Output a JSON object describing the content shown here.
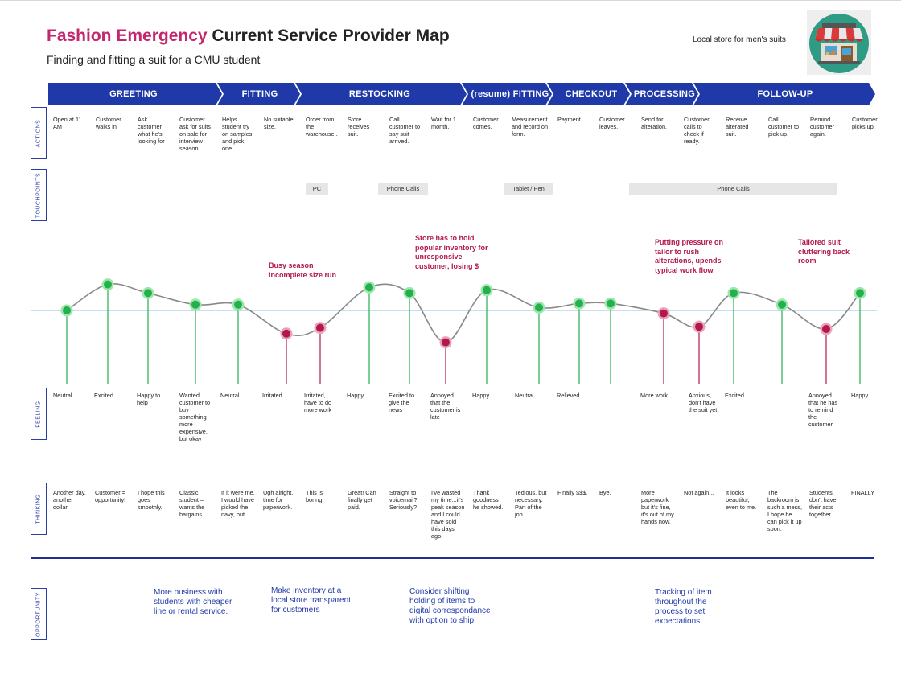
{
  "header": {
    "brand": "Fashion Emergency",
    "title_rest": " Current Service Provider Map",
    "subtitle": "Finding and fitting a suit for a CMU student",
    "store_label": "Local store for men's suits",
    "store_icon": "storefront-icon"
  },
  "phases": [
    "GREETING",
    "FITTING",
    "RESTOCKING",
    "(resume) FITTING",
    "CHECKOUT",
    "PROCESSING",
    "FOLLOW-UP"
  ],
  "row_labels": {
    "actions": "ACTIONS",
    "touchpoints": "TOUCHPOINTS",
    "feeling": "FEELING",
    "thinking": "THINKING",
    "opportunity": "OPPORTUNITY"
  },
  "actions": [
    "Open at 11 AM",
    "Customer walks in",
    "Ask customer what he's looking for",
    "Customer ask for suits on sale for interview season.",
    "Helps student try on samples and pick one.",
    "No suitable size.",
    "Order from the warehouse .",
    "Store receives suit.",
    "Call customer to say suit arrived.",
    "Wait for 1 month.",
    "Customer comes.",
    "Measurement and record on form.",
    "Payment.",
    "Customer leaves.",
    "Send for alteration.",
    "Customer calls to check if ready.",
    "Receive alterated suit.",
    "Call customer to pick up.",
    "Remind customer again.",
    "Customer picks up."
  ],
  "touchpoints": [
    "PC",
    "Phone Calls",
    "Tablet / Pen",
    "Phone Calls"
  ],
  "feelings": [
    "Neutral",
    "Excited",
    "Happy to help",
    "Wanted customer to buy something more expensive, but okay",
    "Neutral",
    "Irritated",
    "Irritated, have to do more work",
    "Happy",
    "Excited to give the news",
    "Annoyed that the customer is late",
    "Happy",
    "Neutral",
    "Relieved",
    "",
    "More work",
    "Anxious, don't have the suit yet",
    "Excited",
    "",
    "Annoyed that he has to remind the customer",
    "Happy"
  ],
  "thinking": [
    "Another day, another dollar.",
    "Customer = opportunity!",
    "I hope this goes smoothly.",
    "Classic student – wants the bargains.",
    "If it were me, I would have picked the navy, but...",
    "Ugh alright, time for paperwork.",
    "This is boring.",
    "Great! Can finally get paid.",
    "Straight to voicemail? Seriously?",
    "I've wasted my time...it's peak season and I could have sold this days ago.",
    "Thank goodness he showed.",
    "Tedious, but necessary. Part of the job.",
    "Finally $$$.",
    "Bye.",
    "More paperwork but it's fine, it's out of my hands now.",
    "Not again...",
    "It looks beautiful, even to me.",
    "The backroom is such a mess, I hope he can pick it up soon.",
    "Students don't have their acts together.",
    "FINALLY"
  ],
  "emotion_points": {
    "levels": [
      0,
      0.45,
      0.3,
      0.1,
      0.1,
      -0.4,
      -0.3,
      0.4,
      0.3,
      -0.55,
      0.35,
      0.05,
      0.12,
      0.12,
      -0.05,
      -0.28,
      0.3,
      0.1,
      -0.32,
      0.3
    ],
    "sentiment": [
      "pos",
      "pos",
      "pos",
      "pos",
      "pos",
      "neg",
      "neg",
      "pos",
      "pos",
      "neg",
      "pos",
      "pos",
      "pos",
      "pos",
      "neg",
      "neg",
      "pos",
      "pos",
      "neg",
      "pos"
    ]
  },
  "pain_points": [
    "Busy season incomplete size run",
    "Store has to hold popular inventory for unresponsive customer, losing $",
    "Putting pressure on tailor to rush alterations, upends typical work flow",
    "Tailored suit cluttering back room"
  ],
  "opportunities": [
    "More business with students with cheaper line or  rental service.",
    "Make inventory at a local store transparent for customers",
    "Consider shifting holding of items to digital correspondance with option to ship",
    "Tracking of item throughout the process to set expectations"
  ],
  "colors": {
    "brand": "#c2276e",
    "phase_bar": "#1f3aa8",
    "row_label": "#2b3fa3",
    "positive": "#22b14c",
    "negative": "#b3174d",
    "baseline": "#a8cde0",
    "opportunity_text": "#1f3aa8"
  }
}
